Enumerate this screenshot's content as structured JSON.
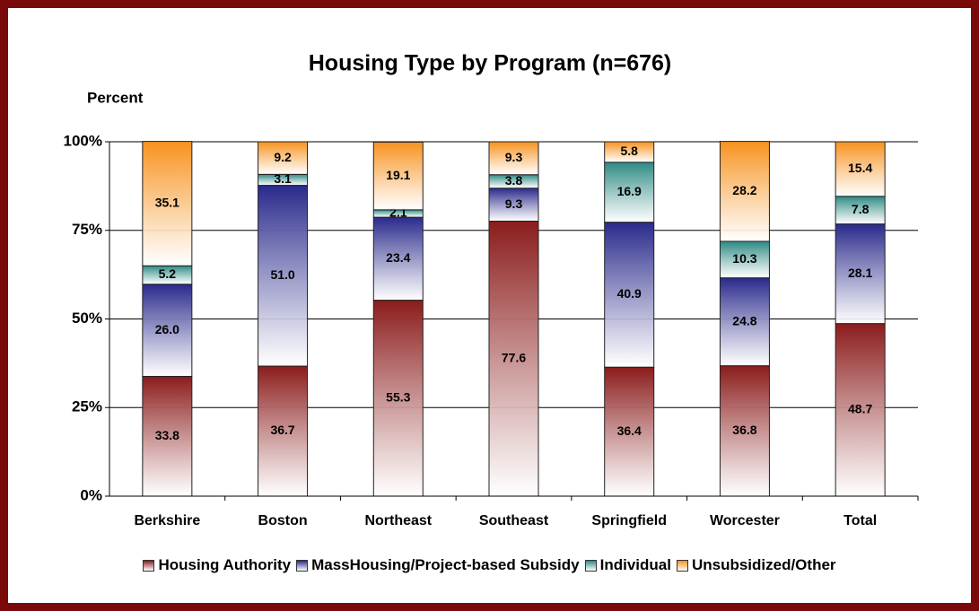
{
  "chart_data": {
    "type": "stacked_bar_100",
    "title": "Housing Type by Program (n=676)",
    "y_label": "Percent",
    "categories": [
      "Berkshire",
      "Boston",
      "Northeast",
      "Southeast",
      "Springfield",
      "Worcester",
      "Total"
    ],
    "series": [
      {
        "name": "Housing Authority",
        "color": "#8b1c1c",
        "values": [
          33.8,
          36.7,
          55.3,
          77.6,
          36.4,
          36.8,
          48.7
        ],
        "value_labels": [
          "33.8",
          "36.7",
          "55.3",
          "77.6",
          "36.4",
          "36.8",
          "48.7"
        ]
      },
      {
        "name": "MassHousing/Project-based Subsidy",
        "color": "#2a2a8c",
        "values": [
          26.0,
          51.0,
          23.4,
          9.3,
          40.9,
          24.8,
          28.1
        ],
        "value_labels": [
          "26.0",
          "51.0",
          "23.4",
          "9.3",
          "40.9",
          "24.8",
          "28.1"
        ]
      },
      {
        "name": "Individual",
        "color": "#2e8a84",
        "values": [
          5.2,
          3.1,
          2.1,
          3.8,
          16.9,
          10.3,
          7.8
        ],
        "value_labels": [
          "5.2",
          "3.1",
          "2.1",
          "3.8",
          "16.9",
          "10.3",
          "7.8"
        ]
      },
      {
        "name": "Unsubsidized/Other",
        "color": "#f7921e",
        "values": [
          35.1,
          9.2,
          19.1,
          9.3,
          5.8,
          28.2,
          15.4
        ],
        "value_labels": [
          "35.1",
          "9.2",
          "19.1",
          "9.3",
          "5.8",
          "28.2",
          "15.4"
        ]
      }
    ],
    "ylim": [
      0,
      100
    ],
    "yticks": [
      {
        "value": 0,
        "label": "0%"
      },
      {
        "value": 25,
        "label": "25%"
      },
      {
        "value": 50,
        "label": "50%"
      },
      {
        "value": 75,
        "label": "75%"
      },
      {
        "value": 100,
        "label": "100%"
      }
    ],
    "grid": true,
    "legend": "bottom"
  }
}
